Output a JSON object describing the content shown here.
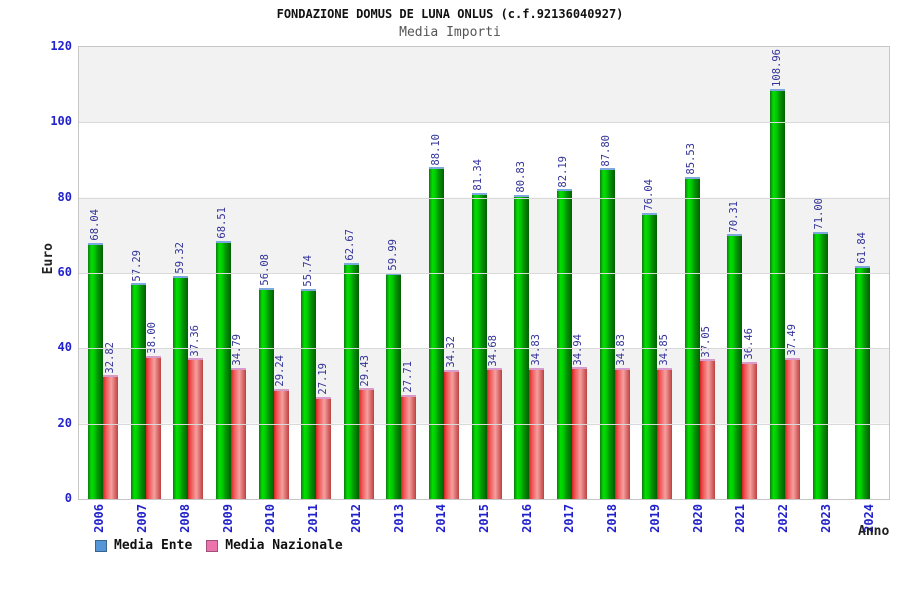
{
  "chart_data": {
    "type": "bar",
    "title": "FONDAZIONE DOMUS DE LUNA ONLUS (c.f.92136040927)",
    "subtitle": "Media Importi",
    "xlabel": "Anno",
    "ylabel": "Euro",
    "ylim": [
      0,
      120
    ],
    "yticks": [
      0,
      20,
      40,
      60,
      80,
      100,
      120
    ],
    "grid": "horizontal gridlines every 20 with alternating gray/white bands",
    "legend_position": "bottom-left",
    "value_label_style": "rotated 90deg, navy, two decimals above each bar",
    "categories": [
      "2006",
      "2007",
      "2008",
      "2009",
      "2010",
      "2011",
      "2012",
      "2013",
      "2014",
      "2015",
      "2016",
      "2017",
      "2018",
      "2019",
      "2020",
      "2021",
      "2022",
      "2023",
      "2024"
    ],
    "series": [
      {
        "name": "Media Ente",
        "bar_color": "#00cc00",
        "legend_swatch_color": "#5596d8",
        "values": [
          68.04,
          57.29,
          59.32,
          68.51,
          56.08,
          55.74,
          62.67,
          59.99,
          88.1,
          81.34,
          80.83,
          82.19,
          87.8,
          76.04,
          85.53,
          70.31,
          108.96,
          71.0,
          61.84
        ]
      },
      {
        "name": "Media Nazionale",
        "bar_color": "#e05050",
        "legend_swatch_color": "#ec74ad",
        "values": [
          32.82,
          38.0,
          37.36,
          34.79,
          29.24,
          27.19,
          29.43,
          27.71,
          34.32,
          34.68,
          34.83,
          34.94,
          34.83,
          34.85,
          37.05,
          36.46,
          37.49,
          null,
          null
        ]
      }
    ],
    "colors": {
      "tick_label_blue": "#2222cc",
      "value_label_navy": "#333399",
      "band_gray": "#f2f2f2",
      "gridline_gray": "#d9d9d9",
      "green_cap_blue": "#7fa8df",
      "red_cap_pink": "#d79ccb",
      "subtitle_gray": "#555555"
    }
  }
}
